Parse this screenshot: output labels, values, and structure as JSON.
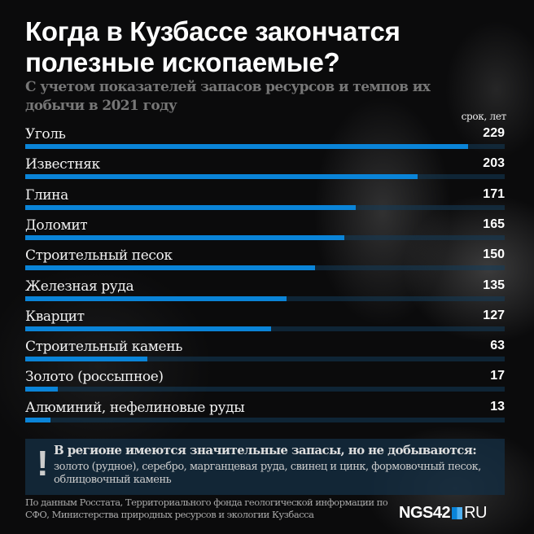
{
  "title": "Когда в Кузбассе закончатся полезные ископаемые?",
  "subtitle": "С учетом показателей запасов ресурсов и темпов их добычи в 2021 году",
  "chart_data": {
    "type": "bar",
    "orientation": "horizontal",
    "unit_label": "срок, лет",
    "categories": [
      "Уголь",
      "Известняк",
      "Глина",
      "Доломит",
      "Строительный песок",
      "Железная руда",
      "Кварцит",
      "Строительный камень",
      "Золото (россыпное)",
      "Алюминий, нефелиновые руды"
    ],
    "values": [
      229,
      203,
      171,
      165,
      150,
      135,
      127,
      63,
      17,
      13
    ],
    "xlim": [
      0,
      248
    ],
    "bar_color": "#0a84d8"
  },
  "note": {
    "heading": "В регионе имеются значительные запасы, но не добываются:",
    "text": "золото (рудное), серебро, марганцевая руда, свинец и цинк, формовочный песок, облицовочный камень",
    "icon": "exclamation-icon"
  },
  "source": "По данным Росстата, Территориального фонда геологической информации по СФО, Министерства природных ресурсов и экологии Кузбасса",
  "logo": {
    "main": "NGS42",
    "suffix": "RU"
  }
}
